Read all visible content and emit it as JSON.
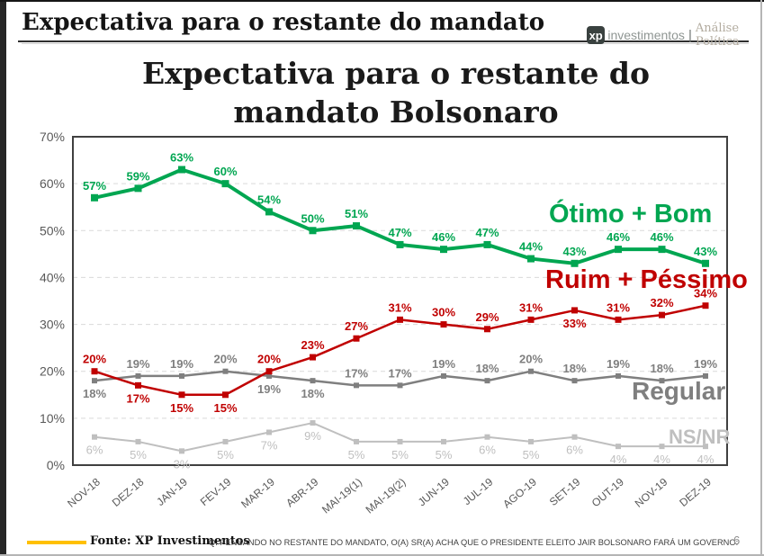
{
  "header": {
    "title": "Expectativa para o restante do mandato",
    "logo": {
      "xp": "xp",
      "investimentos": "investimentos",
      "divider": "|",
      "analise": "Análise Política"
    }
  },
  "chart": {
    "title_line1": "Expectativa para o restante do",
    "title_line2": "mandato Bolsonaro"
  },
  "footer": {
    "fonte": "Fonte: XP Investimentos",
    "question": "Q. PENSANDO NO RESTANTE DO MANDATO, O(A) SR(A) ACHA QUE O PRESIDENTE ELEITO JAIR BOLSONARO FARÁ UM GOVERNO:",
    "page": "6",
    "accent_color": "#FFC000"
  },
  "chart_data": {
    "type": "line",
    "title": "Expectativa para o restante do mandato Bolsonaro",
    "categories": [
      "NOV-18",
      "DEZ-18",
      "JAN-19",
      "FEV-19",
      "MAR-19",
      "ABR-19",
      "MAI-19(1)",
      "MAI-19(2)",
      "JUN-19",
      "JUL-19",
      "AGO-19",
      "SET-19",
      "OUT-19",
      "NOV-19",
      "DEZ-19"
    ],
    "series": [
      {
        "name": "Ótimo + Bom",
        "color": "#00A651",
        "line_width": 4,
        "marker": 8,
        "label_bold": true,
        "values": [
          57,
          59,
          63,
          60,
          54,
          50,
          51,
          47,
          46,
          47,
          44,
          43,
          46,
          46,
          43
        ],
        "label_side": [
          "above",
          "above",
          "above",
          "above",
          "above",
          "above",
          "above",
          "above",
          "above",
          "above",
          "above",
          "above",
          "above",
          "above",
          "above"
        ]
      },
      {
        "name": "Ruim + Péssimo",
        "color": "#C00000",
        "line_width": 2.5,
        "marker": 7,
        "label_bold": true,
        "values": [
          20,
          17,
          15,
          15,
          20,
          23,
          27,
          31,
          30,
          29,
          31,
          33,
          31,
          32,
          34
        ],
        "label_side": [
          "above",
          "below",
          "below",
          "below",
          "above",
          "above",
          "above",
          "above",
          "above",
          "above",
          "above",
          "below",
          "above",
          "above",
          "above"
        ]
      },
      {
        "name": "Regular",
        "color": "#7F7F7F",
        "line_width": 2.5,
        "marker": 6,
        "label_bold": true,
        "values": [
          18,
          19,
          19,
          20,
          19,
          18,
          17,
          17,
          19,
          18,
          20,
          18,
          19,
          18,
          19
        ],
        "label_side": [
          "below",
          "above",
          "above",
          "above",
          "below",
          "below",
          "above",
          "above",
          "above",
          "above",
          "above",
          "above",
          "above",
          "above",
          "above"
        ]
      },
      {
        "name": "NS/NR",
        "color": "#BFBFBF",
        "line_width": 2,
        "marker": 6,
        "label_bold": false,
        "values": [
          6,
          5,
          3,
          5,
          7,
          9,
          5,
          5,
          5,
          6,
          5,
          6,
          4,
          4,
          4
        ],
        "label_side": [
          "below",
          "below",
          "below",
          "below",
          "below",
          "below",
          "below",
          "below",
          "below",
          "below",
          "below",
          "below",
          "below",
          "below",
          "below"
        ]
      }
    ],
    "ylim": [
      0,
      70
    ],
    "ytick_step": 10,
    "ytick_suffix": "%",
    "grid": "horizontal dashed",
    "legend_position": "inline text labels at right of plot",
    "xlabel": "",
    "ylabel": ""
  }
}
